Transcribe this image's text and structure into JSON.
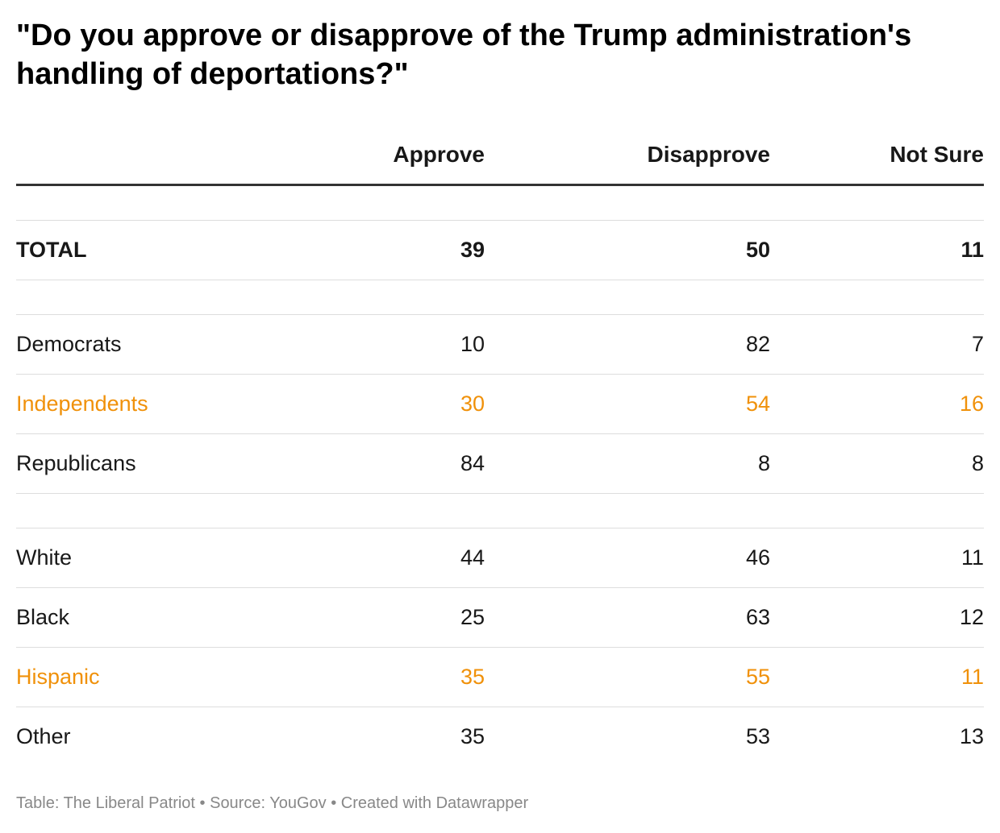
{
  "chart_data": {
    "type": "table",
    "title": "\"Do you approve or disapprove of the Trump administration's handling of deportations?\"",
    "columns": [
      "Approve",
      "Disapprove",
      "Not Sure"
    ],
    "groups": [
      {
        "rows": [
          {
            "label": "TOTAL",
            "values": [
              "39",
              "50",
              "11"
            ],
            "bold": true,
            "highlight": false
          }
        ]
      },
      {
        "rows": [
          {
            "label": "Democrats",
            "values": [
              "10",
              "82",
              "7"
            ],
            "bold": false,
            "highlight": false
          },
          {
            "label": "Independents",
            "values": [
              "30",
              "54",
              "16"
            ],
            "bold": false,
            "highlight": true
          },
          {
            "label": "Republicans",
            "values": [
              "84",
              "8",
              "8"
            ],
            "bold": false,
            "highlight": false
          }
        ]
      },
      {
        "rows": [
          {
            "label": "White",
            "values": [
              "44",
              "46",
              "11"
            ],
            "bold": false,
            "highlight": false
          },
          {
            "label": "Black",
            "values": [
              "25",
              "63",
              "12"
            ],
            "bold": false,
            "highlight": false
          },
          {
            "label": "Hispanic",
            "values": [
              "35",
              "55",
              "11"
            ],
            "bold": false,
            "highlight": true
          },
          {
            "label": "Other",
            "values": [
              "35",
              "53",
              "13"
            ],
            "bold": false,
            "highlight": false
          }
        ]
      }
    ],
    "highlight_color": "#f0910a",
    "footer": "Table: The Liberal Patriot • Source: YouGov • Created with Datawrapper"
  }
}
